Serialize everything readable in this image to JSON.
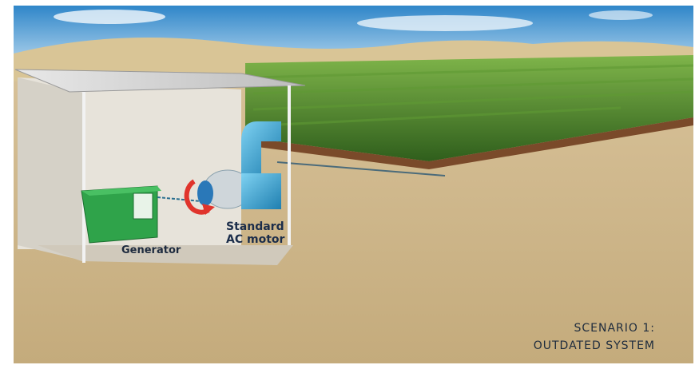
{
  "scene": {
    "generator_label": "Generator",
    "motor_label_line1": "Standard",
    "motor_label_line2": "AC motor",
    "scenario_line1": "SCENARIO 1:",
    "scenario_line2": "OUTDATED SYSTEM"
  },
  "colors": {
    "sky_top": "#2f86c9",
    "sky_bottom": "#cfe6f5",
    "sand": "#cdb68a",
    "crop": "#4f8a2a",
    "generator": "#2fa34a",
    "pump": "#37a9d8",
    "rotation_arrow": "#e0342c"
  }
}
